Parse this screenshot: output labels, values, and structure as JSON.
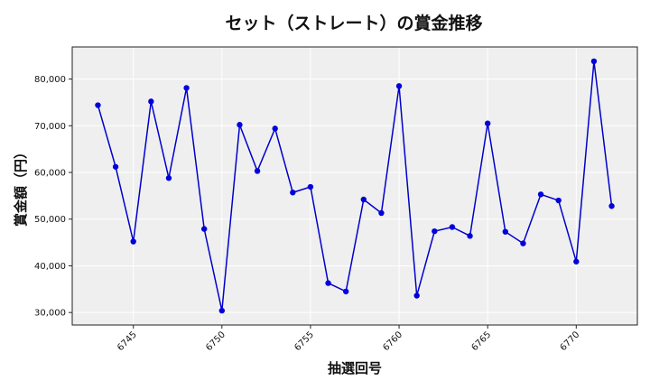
{
  "chart_data": {
    "type": "line",
    "title": "セット（ストレート）の賞金推移",
    "xlabel": "抽選回号",
    "ylabel": "賞金額（円）",
    "x": [
      6743,
      6744,
      6745,
      6746,
      6747,
      6748,
      6749,
      6750,
      6751,
      6752,
      6753,
      6754,
      6755,
      6756,
      6757,
      6758,
      6759,
      6760,
      6761,
      6762,
      6763,
      6764,
      6765,
      6766,
      6767,
      6768,
      6769,
      6770,
      6771,
      6772
    ],
    "series": [
      {
        "values": [
          74400,
          61200,
          45200,
          75200,
          58800,
          78100,
          47900,
          30400,
          70200,
          60300,
          69400,
          55700,
          56900,
          36300,
          34500,
          54200,
          51300,
          78500,
          33600,
          47400,
          48300,
          46400,
          70500,
          47300,
          44800,
          55300,
          54000,
          40900,
          83800,
          52800
        ]
      }
    ],
    "xticks": [
      6745,
      6750,
      6755,
      6760,
      6765,
      6770
    ],
    "yticks": [
      30000,
      40000,
      50000,
      60000,
      70000,
      80000
    ],
    "xlim": [
      6741.55,
      6773.45
    ],
    "ylim": [
      27325,
      86875
    ],
    "grid": true,
    "line_color": "#0000cc",
    "marker_color": "#0000dd",
    "plot_background": "#efefef"
  }
}
